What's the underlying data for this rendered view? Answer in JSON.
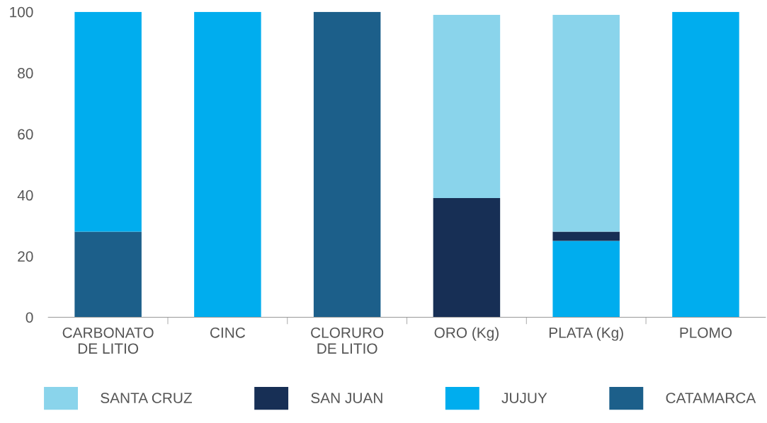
{
  "chart_data": {
    "type": "bar",
    "stacked": true,
    "categories": [
      "CARBONATO\nDE LITIO",
      "CINC",
      "CLORURO\nDE LITIO",
      "ORO (Kg)",
      "PLATA (Kg)",
      "PLOMO"
    ],
    "series": [
      {
        "name": "CATAMARCA",
        "color": "#1c5f8a",
        "values": [
          28,
          null,
          100,
          null,
          null,
          null
        ]
      },
      {
        "name": "JUJUY",
        "color": "#00adee",
        "values": [
          72,
          100,
          null,
          null,
          25,
          100
        ]
      },
      {
        "name": "SAN JUAN",
        "color": "#172f55",
        "values": [
          null,
          null,
          null,
          39,
          3,
          null
        ]
      },
      {
        "name": "SANTA CRUZ",
        "color": "#8ad4eb",
        "values": [
          null,
          null,
          null,
          60,
          71,
          null
        ]
      }
    ],
    "ylim": [
      0,
      100
    ],
    "yticks": [
      0,
      20,
      40,
      60,
      80,
      100
    ],
    "grid": false,
    "legend": "bottom"
  }
}
